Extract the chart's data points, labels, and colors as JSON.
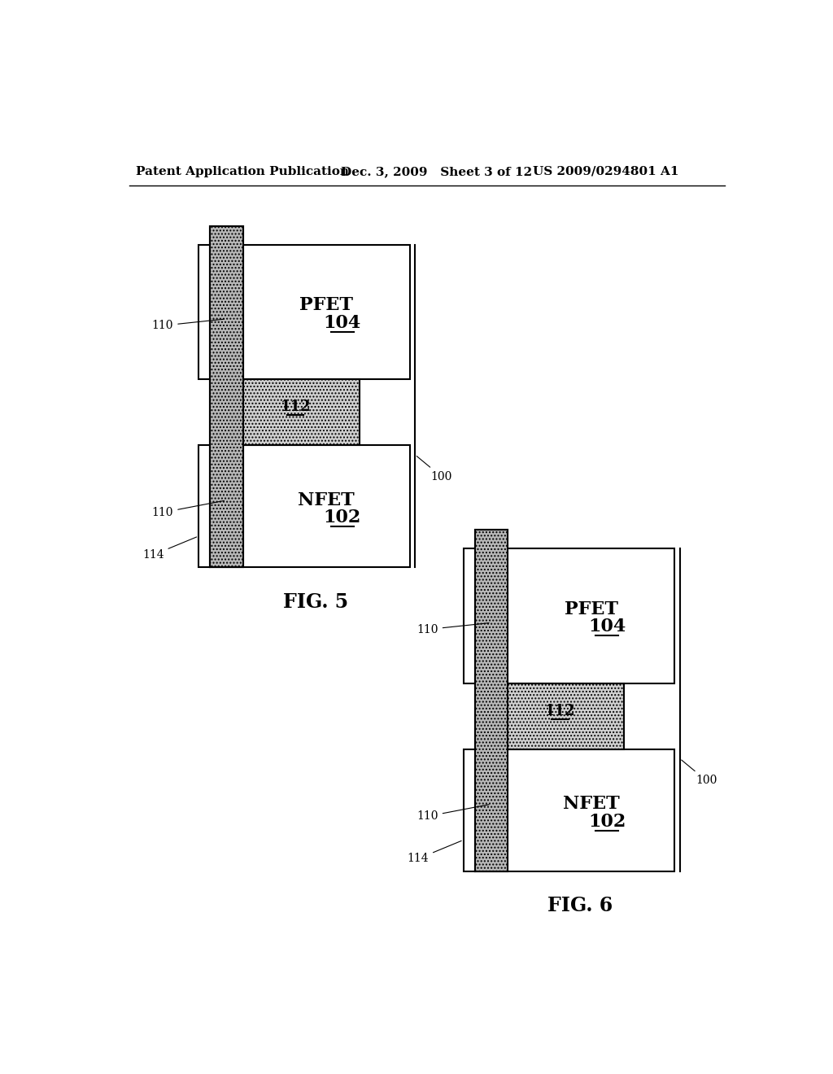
{
  "header_left": "Patent Application Publication",
  "header_mid": "Dec. 3, 2009   Sheet 3 of 12",
  "header_right": "US 2009/0294801 A1",
  "fig5_label": "FIG. 5",
  "fig6_label": "FIG. 6",
  "bg_color": "#ffffff",
  "lc": "#000000",
  "gate_hatch_color": "#aaaaaa",
  "block112_hatch_color": "#cccccc",
  "spacer_color": "#e8e8e8"
}
